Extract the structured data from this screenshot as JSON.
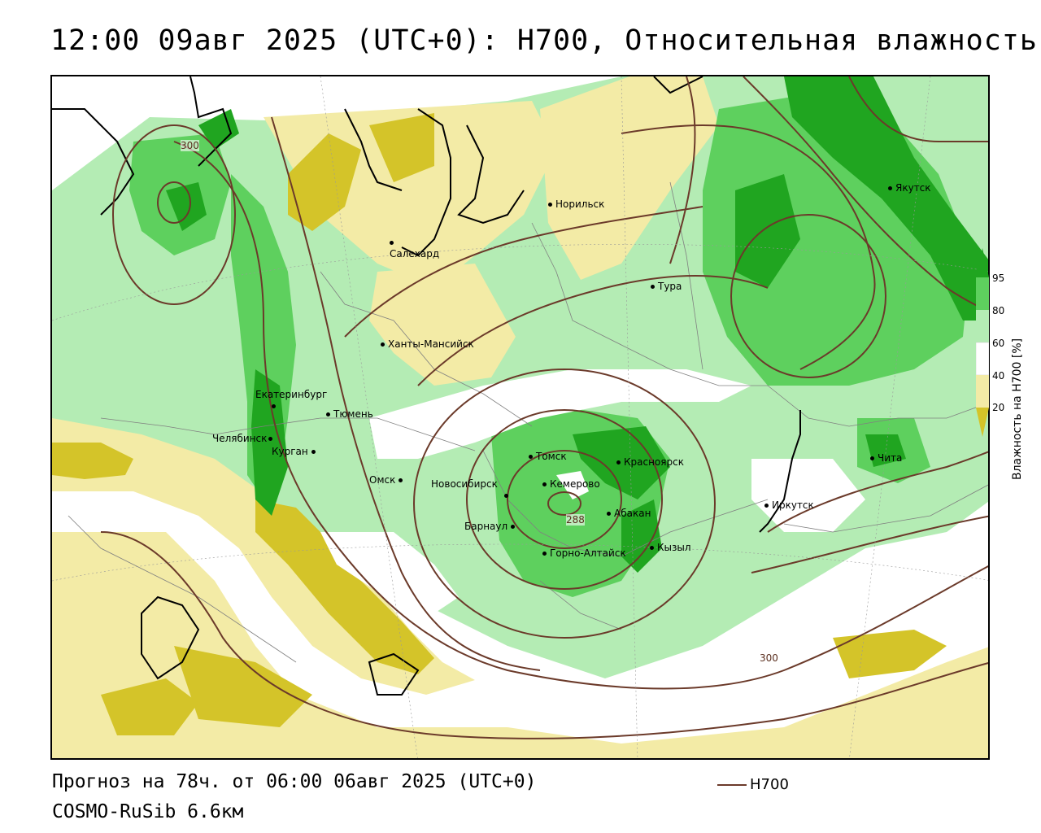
{
  "title": "12:00 09авг 2025 (UTC+0): H700, Относительная влажность",
  "footer": {
    "forecast": "Прогноз на 78ч. от 06:00 06авг 2025 (UTC+0)",
    "model": "COSMO-RuSib 6.6км"
  },
  "legend": {
    "line_label": "H700",
    "line_color": "#6b3a2a",
    "colorbar_label": "Влажность на H700 [%]",
    "ticks": [
      "95",
      "80",
      "60",
      "40",
      "20"
    ],
    "colors": {
      "very_dry": "#d4c429",
      "dry": "#f3eba6",
      "neutral": "#ffffff",
      "moist": "#b4ecb4",
      "wet": "#5ed05e",
      "very_wet": "#20a520"
    }
  },
  "cities": [
    {
      "name": "Норильск"
    },
    {
      "name": "Якутск"
    },
    {
      "name": "Салехард"
    },
    {
      "name": "Тура"
    },
    {
      "name": "Ханты-Мансийск"
    },
    {
      "name": "Екатеринбург"
    },
    {
      "name": "Тюмень"
    },
    {
      "name": "Челябинск"
    },
    {
      "name": "Курган"
    },
    {
      "name": "Омск"
    },
    {
      "name": "Новосибирск"
    },
    {
      "name": "Томск"
    },
    {
      "name": "Кемерово"
    },
    {
      "name": "Красноярск"
    },
    {
      "name": "Барнаул"
    },
    {
      "name": "Абакан"
    },
    {
      "name": "Горно-Алтайск"
    },
    {
      "name": "Кызыл"
    },
    {
      "name": "Иркутск"
    },
    {
      "name": "Чита"
    }
  ],
  "contour_labels": [
    "300",
    "288",
    "300"
  ]
}
